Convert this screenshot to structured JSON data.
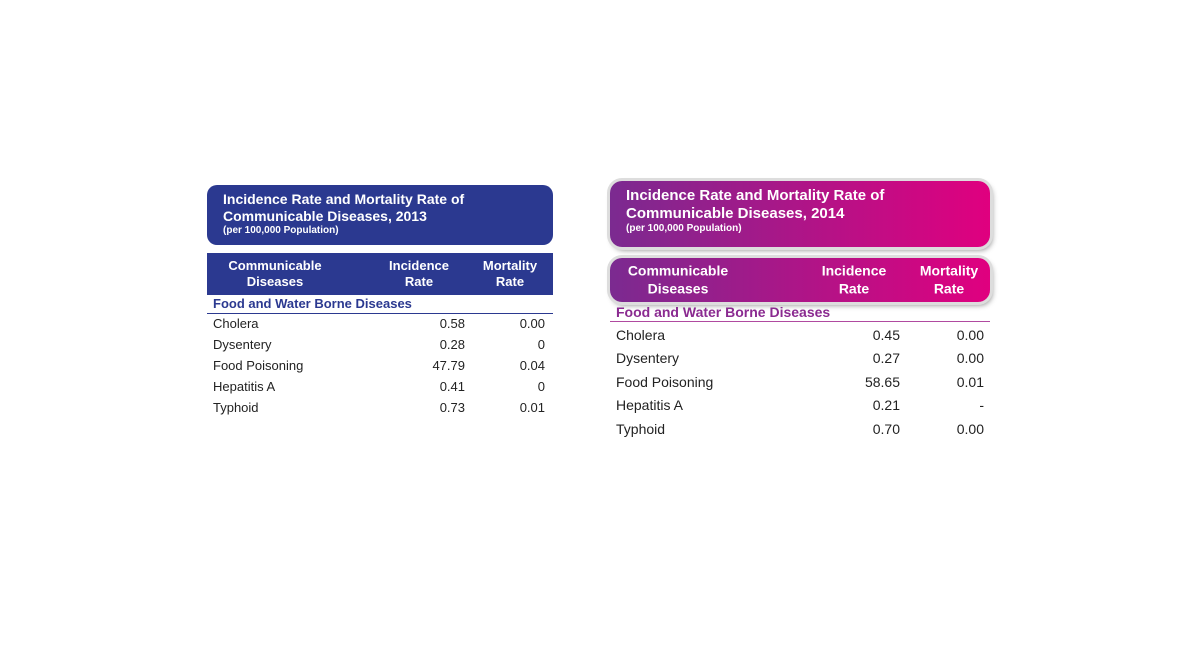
{
  "tables": [
    {
      "title": "Incidence Rate and Mortality Rate of Communicable Diseases, 2013",
      "subtitle": "(per 100,000 Population)",
      "columns": [
        "Communicable Diseases",
        "Incidence Rate",
        "Mortality Rate"
      ],
      "section": "Food and Water Borne Diseases",
      "rows": [
        [
          "Cholera",
          "0.58",
          "0.00"
        ],
        [
          "Dysentery",
          "0.28",
          "0"
        ],
        [
          "Food Poisoning",
          "47.79",
          "0.04"
        ],
        [
          "Hepatitis A",
          "0.41",
          "0"
        ],
        [
          "Typhoid",
          "0.73",
          "0.01"
        ]
      ]
    },
    {
      "title": "Incidence Rate and Mortality Rate of Communicable Diseases, 2014",
      "subtitle": "(per 100,000 Population)",
      "columns": [
        "Communicable Diseases",
        "Incidence Rate",
        "Mortality Rate"
      ],
      "section": "Food and Water Borne Diseases",
      "rows": [
        [
          "Cholera",
          "0.45",
          "0.00"
        ],
        [
          "Dysentery",
          "0.27",
          "0.00"
        ],
        [
          "Food Poisoning",
          "58.65",
          "0.01"
        ],
        [
          "Hepatitis A",
          "0.21",
          "-"
        ],
        [
          "Typhoid",
          "0.70",
          "0.00"
        ]
      ]
    }
  ]
}
